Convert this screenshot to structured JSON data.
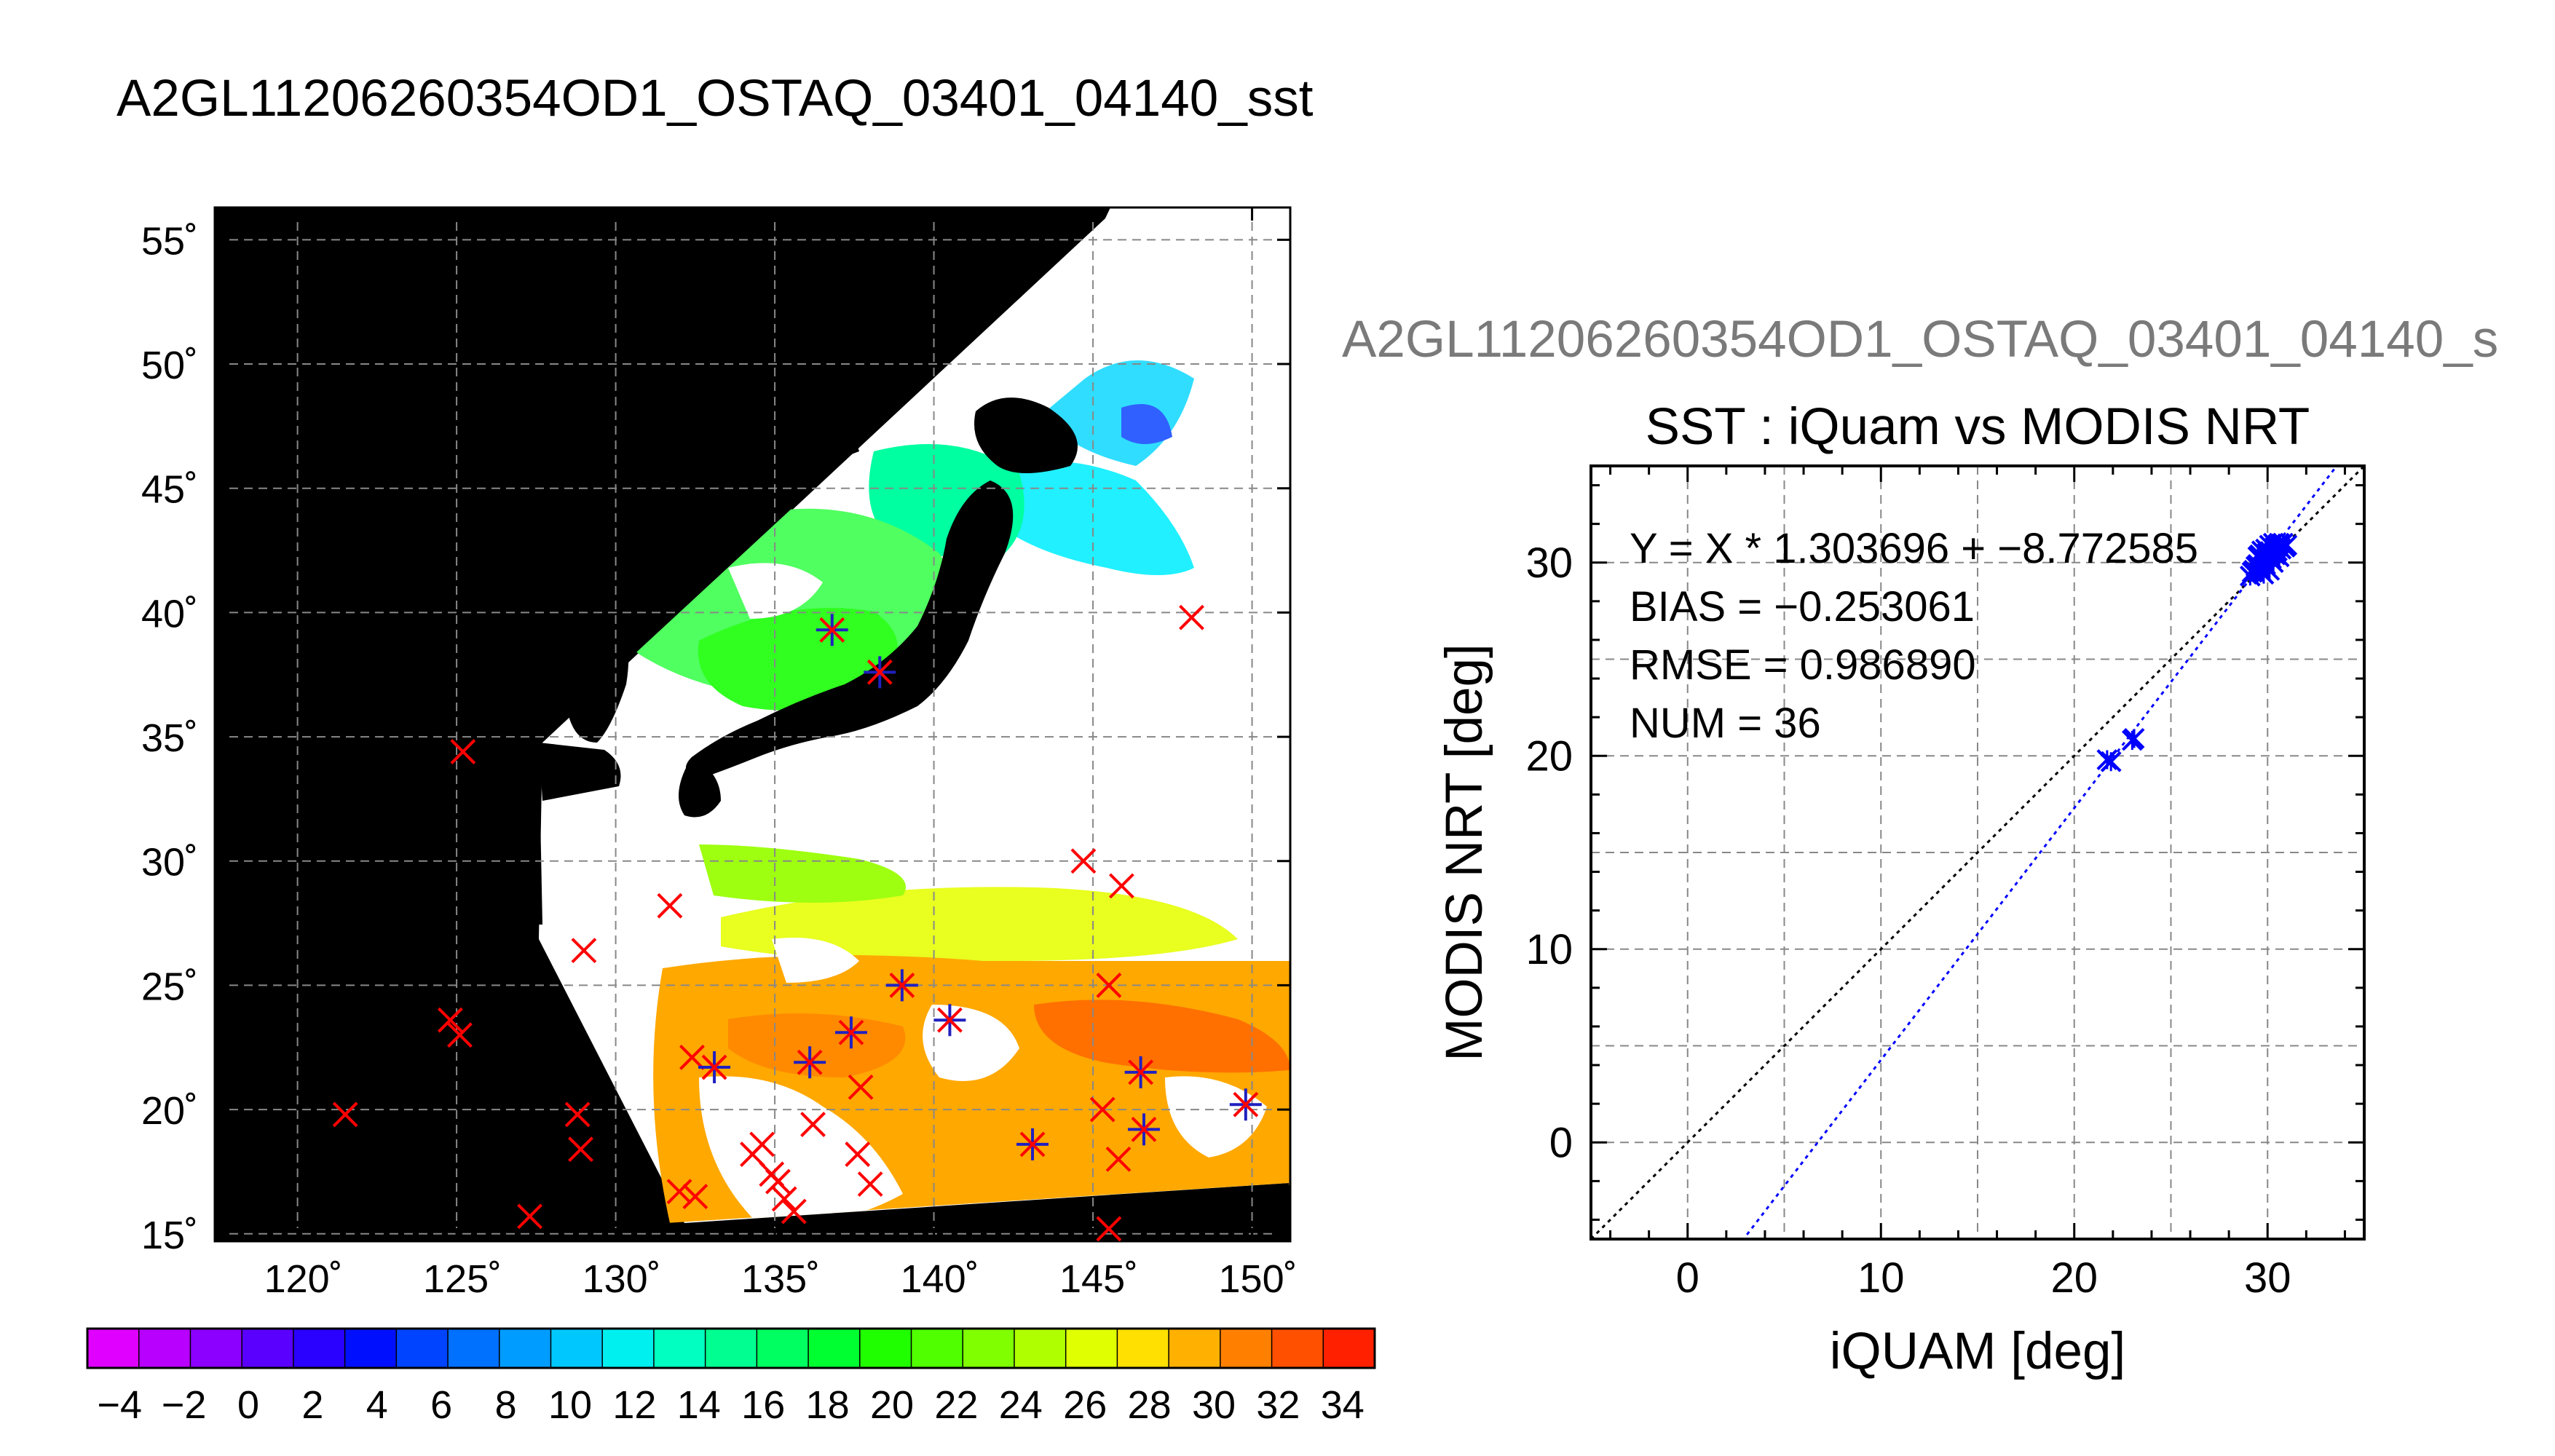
{
  "main_title": "A2GL11206260354OD1_OSTAQ_03401_04140_sst",
  "scatter_subtitle": "A2GL11206260354OD1_OSTAQ_03401_04140_s",
  "colors": {
    "colorbar": [
      "#e000ff",
      "#b800ff",
      "#8c00ff",
      "#5a00ff",
      "#2a00ff",
      "#0010ff",
      "#0044ff",
      "#0070ff",
      "#009cff",
      "#00c8ff",
      "#00f0f0",
      "#00ffc0",
      "#00ff90",
      "#00ff60",
      "#00ff30",
      "#20ff00",
      "#50ff00",
      "#80ff00",
      "#b0ff00",
      "#e0ff00",
      "#ffe000",
      "#ffb000",
      "#ff8000",
      "#ff5000",
      "#ff2000"
    ],
    "land": "#000000",
    "cloud": "#ffffff",
    "match_marker": "#ff0000",
    "matched_star": "#2020c0",
    "fit_line": "#0000ff",
    "one_to_one_line": "#000000"
  },
  "chart_data": [
    {
      "type": "heatmap",
      "title": "A2GL11206260354OD1_OSTAQ_03401_04140_sst",
      "x_ticks": [
        "120˚",
        "125˚",
        "130˚",
        "135˚",
        "140˚",
        "145˚",
        "150˚"
      ],
      "y_ticks": [
        "15˚",
        "20˚",
        "25˚",
        "30˚",
        "35˚",
        "40˚",
        "45˚",
        "50˚",
        "55˚"
      ],
      "xlim": [
        117.4,
        151.2
      ],
      "ylim": [
        14.7,
        56.3
      ],
      "grid": true,
      "colorbar": {
        "ticks": [
          "−4",
          "−2",
          "0",
          "2",
          "4",
          "6",
          "8",
          "10",
          "12",
          "14",
          "16",
          "18",
          "20",
          "22",
          "24",
          "26",
          "28",
          "30",
          "32",
          "34"
        ],
        "range": [
          -5,
          35
        ]
      },
      "markers": [
        {
          "lon": 121.5,
          "lat": 19.8,
          "star": false
        },
        {
          "lon": 125.2,
          "lat": 34.4,
          "star": false
        },
        {
          "lon": 124.8,
          "lat": 23.6,
          "star": false
        },
        {
          "lon": 125.1,
          "lat": 23.0,
          "star": false
        },
        {
          "lon": 127.3,
          "lat": 15.7,
          "star": false
        },
        {
          "lon": 128.8,
          "lat": 19.8,
          "star": false
        },
        {
          "lon": 128.9,
          "lat": 18.4,
          "star": false
        },
        {
          "lon": 129.0,
          "lat": 26.4,
          "star": false
        },
        {
          "lon": 131.7,
          "lat": 28.2,
          "star": false
        },
        {
          "lon": 132.0,
          "lat": 16.7,
          "star": false
        },
        {
          "lon": 132.5,
          "lat": 16.5,
          "star": false
        },
        {
          "lon": 132.4,
          "lat": 22.1,
          "star": false
        },
        {
          "lon": 133.1,
          "lat": 21.7,
          "star": true
        },
        {
          "lon": 134.3,
          "lat": 18.2,
          "star": false
        },
        {
          "lon": 134.6,
          "lat": 18.6,
          "star": false
        },
        {
          "lon": 134.9,
          "lat": 17.4,
          "star": false
        },
        {
          "lon": 135.1,
          "lat": 17.1,
          "star": false
        },
        {
          "lon": 135.3,
          "lat": 16.4,
          "star": false
        },
        {
          "lon": 135.6,
          "lat": 15.9,
          "star": false
        },
        {
          "lon": 136.1,
          "lat": 21.9,
          "star": true
        },
        {
          "lon": 136.2,
          "lat": 19.4,
          "star": false
        },
        {
          "lon": 136.8,
          "lat": 39.3,
          "star": true
        },
        {
          "lon": 137.4,
          "lat": 23.1,
          "star": true
        },
        {
          "lon": 137.6,
          "lat": 18.2,
          "star": false
        },
        {
          "lon": 137.7,
          "lat": 20.9,
          "star": false
        },
        {
          "lon": 138.0,
          "lat": 17.0,
          "star": false
        },
        {
          "lon": 138.3,
          "lat": 37.6,
          "star": true
        },
        {
          "lon": 139.0,
          "lat": 25.0,
          "star": true
        },
        {
          "lon": 140.5,
          "lat": 23.6,
          "star": true
        },
        {
          "lon": 143.1,
          "lat": 18.6,
          "star": true
        },
        {
          "lon": 144.7,
          "lat": 30.0,
          "star": false
        },
        {
          "lon": 145.5,
          "lat": 25.0,
          "star": false
        },
        {
          "lon": 145.9,
          "lat": 29.0,
          "star": false
        },
        {
          "lon": 145.3,
          "lat": 20.0,
          "star": false
        },
        {
          "lon": 145.8,
          "lat": 18.0,
          "star": false
        },
        {
          "lon": 146.5,
          "lat": 21.5,
          "star": true
        },
        {
          "lon": 146.6,
          "lat": 19.2,
          "star": true
        },
        {
          "lon": 145.5,
          "lat": 15.2,
          "star": false
        },
        {
          "lon": 148.1,
          "lat": 39.8,
          "star": false
        },
        {
          "lon": 149.8,
          "lat": 20.2,
          "star": true
        }
      ]
    },
    {
      "type": "scatter",
      "title": "SST : iQuam vs MODIS NRT",
      "xlabel": "iQUAM [deg]",
      "ylabel": "MODIS NRT [deg]",
      "xlim": [
        -5,
        35
      ],
      "ylim": [
        -5,
        35
      ],
      "x_ticks": [
        0,
        10,
        20,
        30
      ],
      "y_ticks": [
        0,
        10,
        20,
        30
      ],
      "grid": true,
      "annotations": [
        "Y = X * 1.303696 + −8.772585",
        "BIAS = −0.253061",
        "RMSE = 0.986890",
        "NUM = 36"
      ],
      "fit": {
        "slope": 1.303696,
        "intercept": -8.772585
      },
      "points": [
        {
          "x": 21.7,
          "y": 19.8
        },
        {
          "x": 21.9,
          "y": 19.7
        },
        {
          "x": 23.0,
          "y": 20.8
        },
        {
          "x": 23.1,
          "y": 20.9
        },
        {
          "x": 29.1,
          "y": 29.3
        },
        {
          "x": 29.3,
          "y": 29.6
        },
        {
          "x": 29.5,
          "y": 29.9
        },
        {
          "x": 29.6,
          "y": 30.4
        },
        {
          "x": 29.7,
          "y": 29.5
        },
        {
          "x": 29.8,
          "y": 30.1
        },
        {
          "x": 29.9,
          "y": 30.7
        },
        {
          "x": 30.0,
          "y": 29.7
        },
        {
          "x": 30.0,
          "y": 30.3
        },
        {
          "x": 30.1,
          "y": 30.9
        },
        {
          "x": 30.2,
          "y": 30.5
        },
        {
          "x": 30.3,
          "y": 30.0
        },
        {
          "x": 30.4,
          "y": 30.8
        },
        {
          "x": 30.5,
          "y": 30.6
        },
        {
          "x": 30.6,
          "y": 31.0
        },
        {
          "x": 30.7,
          "y": 30.7
        },
        {
          "x": 30.8,
          "y": 31.0
        },
        {
          "x": 31.0,
          "y": 30.9
        },
        {
          "x": 29.4,
          "y": 29.8
        },
        {
          "x": 29.9,
          "y": 29.9
        },
        {
          "x": 30.2,
          "y": 30.2
        },
        {
          "x": 30.4,
          "y": 30.4
        },
        {
          "x": 29.7,
          "y": 30.6
        },
        {
          "x": 30.1,
          "y": 29.6
        },
        {
          "x": 30.6,
          "y": 30.3
        },
        {
          "x": 29.5,
          "y": 30.3
        },
        {
          "x": 30.9,
          "y": 30.8
        },
        {
          "x": 30.3,
          "y": 31.0
        },
        {
          "x": 29.8,
          "y": 29.4
        },
        {
          "x": 29.2,
          "y": 29.5
        },
        {
          "x": 30.0,
          "y": 30.5
        },
        {
          "x": 30.5,
          "y": 30.9
        }
      ]
    }
  ]
}
